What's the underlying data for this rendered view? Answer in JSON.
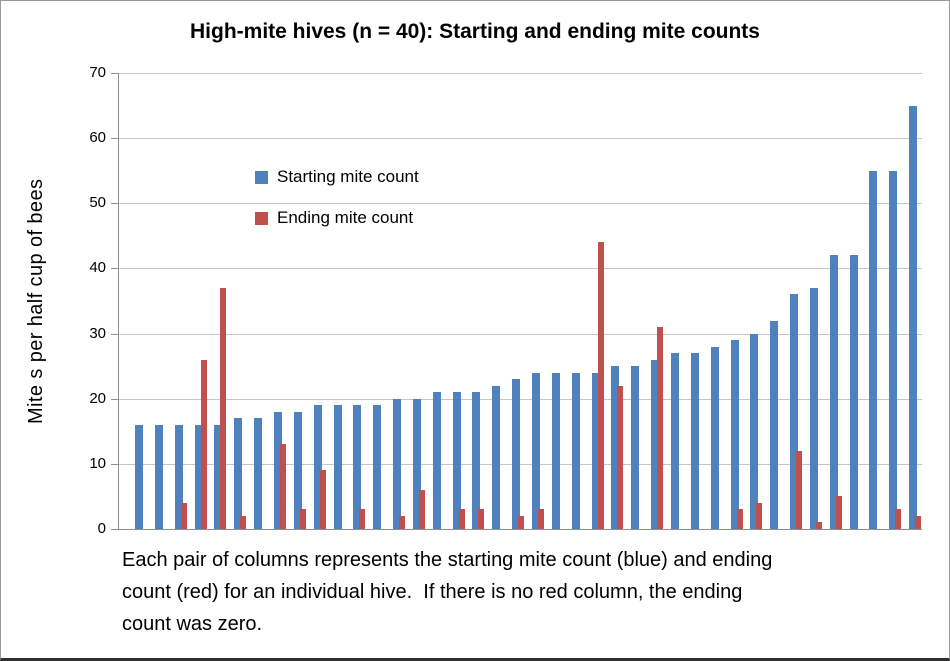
{
  "chart_data": {
    "type": "bar",
    "title": "High-mite hives (n = 40): Starting and ending mite counts",
    "ylabel": "Mite s per half cup of bees",
    "xlabel": "",
    "ylim": [
      0,
      70
    ],
    "yticks": [
      0,
      10,
      20,
      30,
      40,
      50,
      60,
      70
    ],
    "grid": true,
    "legend_position": "inside-upper-left",
    "series": [
      {
        "name": "Starting mite count",
        "color": "#4f81bd",
        "values": [
          16,
          16,
          16,
          16,
          16,
          17,
          17,
          18,
          18,
          19,
          19,
          19,
          19,
          20,
          20,
          21,
          21,
          21,
          22,
          23,
          24,
          24,
          24,
          24,
          25,
          25,
          26,
          27,
          27,
          28,
          29,
          30,
          32,
          36,
          37,
          42,
          42,
          55,
          55,
          65
        ]
      },
      {
        "name": "Ending mite count",
        "color": "#c0504d",
        "values": [
          0,
          0,
          4,
          26,
          37,
          2,
          0,
          13,
          3,
          9,
          0,
          3,
          0,
          2,
          6,
          0,
          3,
          3,
          0,
          2,
          3,
          0,
          0,
          44,
          22,
          0,
          31,
          0,
          0,
          0,
          3,
          4,
          0,
          12,
          1,
          5,
          0,
          0,
          3,
          2
        ]
      }
    ],
    "caption_lines": [
      "Each pair of columns represents the starting mite count (blue) and ending",
      "count (red) for an individual hive.  If there is no red column, the ending",
      "count was zero."
    ]
  },
  "colors": {
    "starting_bar": "#4f81bd",
    "ending_bar": "#c0504d",
    "gridline": "#c6c6c6",
    "axis": "#8e8e8e"
  }
}
